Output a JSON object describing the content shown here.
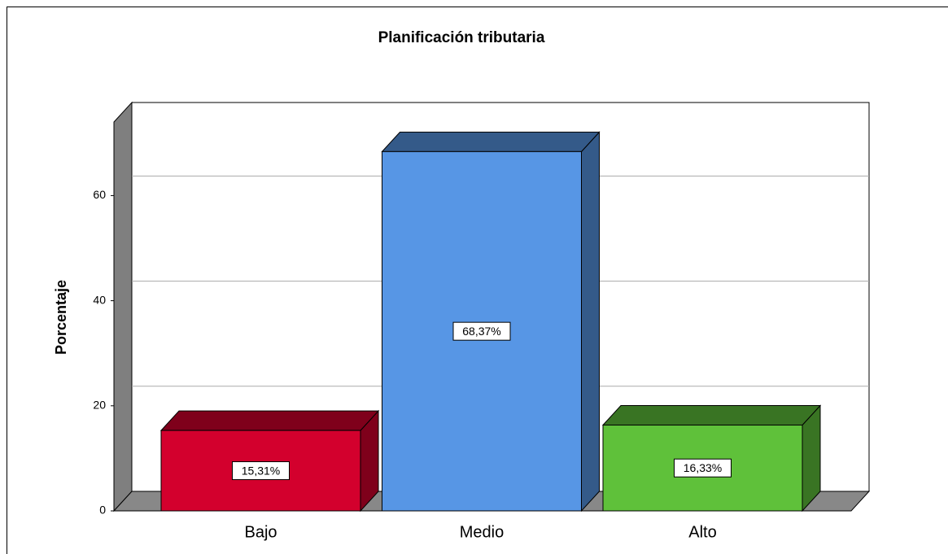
{
  "chart_data": {
    "type": "bar3d",
    "title": "Planificación tributaria",
    "y_label": "Porcentaje",
    "categories": [
      "Bajo",
      "Medio",
      "Alto"
    ],
    "values": [
      15.31,
      68.37,
      16.33
    ],
    "value_labels": [
      "15,31%",
      "68,37%",
      "16,33%"
    ],
    "colors": [
      "#d3002d",
      "#5796e5",
      "#5fc13a"
    ],
    "ylim": [
      0,
      74
    ],
    "yticks": [
      0,
      20,
      40,
      60
    ],
    "grid": true
  }
}
